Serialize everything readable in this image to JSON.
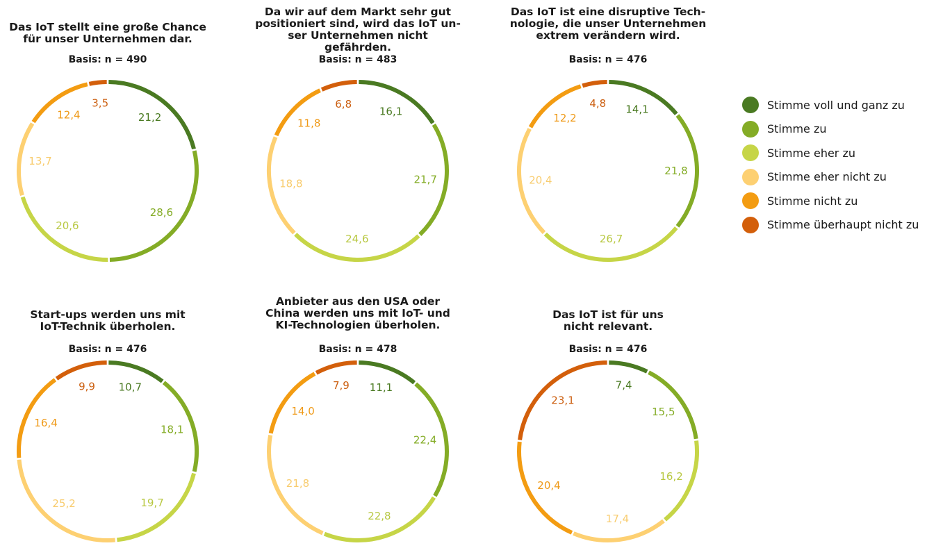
{
  "categories": [
    "Stimme voll und ganz zu",
    "Stimme zu",
    "Stimme eher zu",
    "Stimme eher nicht zu",
    "Stimme nicht zu",
    "Stimme überhaupt nicht zu"
  ],
  "colors": [
    "#4a7a22",
    "#84ac26",
    "#c6d547",
    "#fdd072",
    "#f39c12",
    "#d35f0b"
  ],
  "label_colors": [
    "#4a7a22",
    "#84ac26",
    "#b8c842",
    "#f8cc6e",
    "#ef9a18",
    "#cc5f10"
  ],
  "chart_data": [
    {
      "type": "pie",
      "title": "Das IoT stellt eine große Chance\nfür unser Unternehmen dar.",
      "basis": "Basis: n = 490",
      "values": [
        21.2,
        28.6,
        20.6,
        13.7,
        12.4,
        3.5
      ],
      "labels": [
        "21,2",
        "28,6",
        "20,6",
        "13,7",
        "12,4",
        "3,5"
      ]
    },
    {
      "type": "pie",
      "title": "Da wir auf dem Markt sehr gut\npositioniert sind, wird das IoT un-\nser Unternehmen nicht gefährden.",
      "basis": "Basis: n = 483",
      "values": [
        16.1,
        21.7,
        24.6,
        18.8,
        11.8,
        6.8
      ],
      "labels": [
        "16,1",
        "21,7",
        "24,6",
        "18,8",
        "11,8",
        "6,8"
      ]
    },
    {
      "type": "pie",
      "title": "Das IoT ist eine disruptive Tech-\nnologie, die unser Unternehmen\nextrem verändern wird.",
      "basis": "Basis: n = 476",
      "values": [
        14.1,
        21.8,
        26.7,
        20.4,
        12.2,
        4.8
      ],
      "labels": [
        "14,1",
        "21,8",
        "26,7",
        "20,4",
        "12,2",
        "4,8"
      ]
    },
    {
      "type": "pie",
      "title": "Start-ups werden uns mit\nIoT-Technik überholen.",
      "basis": "Basis: n = 476",
      "values": [
        10.7,
        18.1,
        19.7,
        25.2,
        16.4,
        9.9
      ],
      "labels": [
        "10,7",
        "18,1",
        "19,7",
        "25,2",
        "16,4",
        "9,9"
      ]
    },
    {
      "type": "pie",
      "title": "Anbieter aus den USA oder\nChina werden uns mit IoT- und\nKI-Technologien überholen.",
      "basis": "Basis: n = 478",
      "values": [
        11.1,
        22.4,
        22.8,
        21.8,
        14.0,
        7.9
      ],
      "labels": [
        "11,1",
        "22,4",
        "22,8",
        "21,8",
        "14,0",
        "7,9"
      ]
    },
    {
      "type": "pie",
      "title": "Das IoT ist für uns\nnicht relevant.",
      "basis": "Basis: n = 476",
      "values": [
        7.4,
        15.5,
        16.2,
        17.4,
        20.4,
        23.1
      ],
      "labels": [
        "7,4",
        "15,5",
        "16,2",
        "17,4",
        "20,4",
        "23,1"
      ]
    }
  ]
}
